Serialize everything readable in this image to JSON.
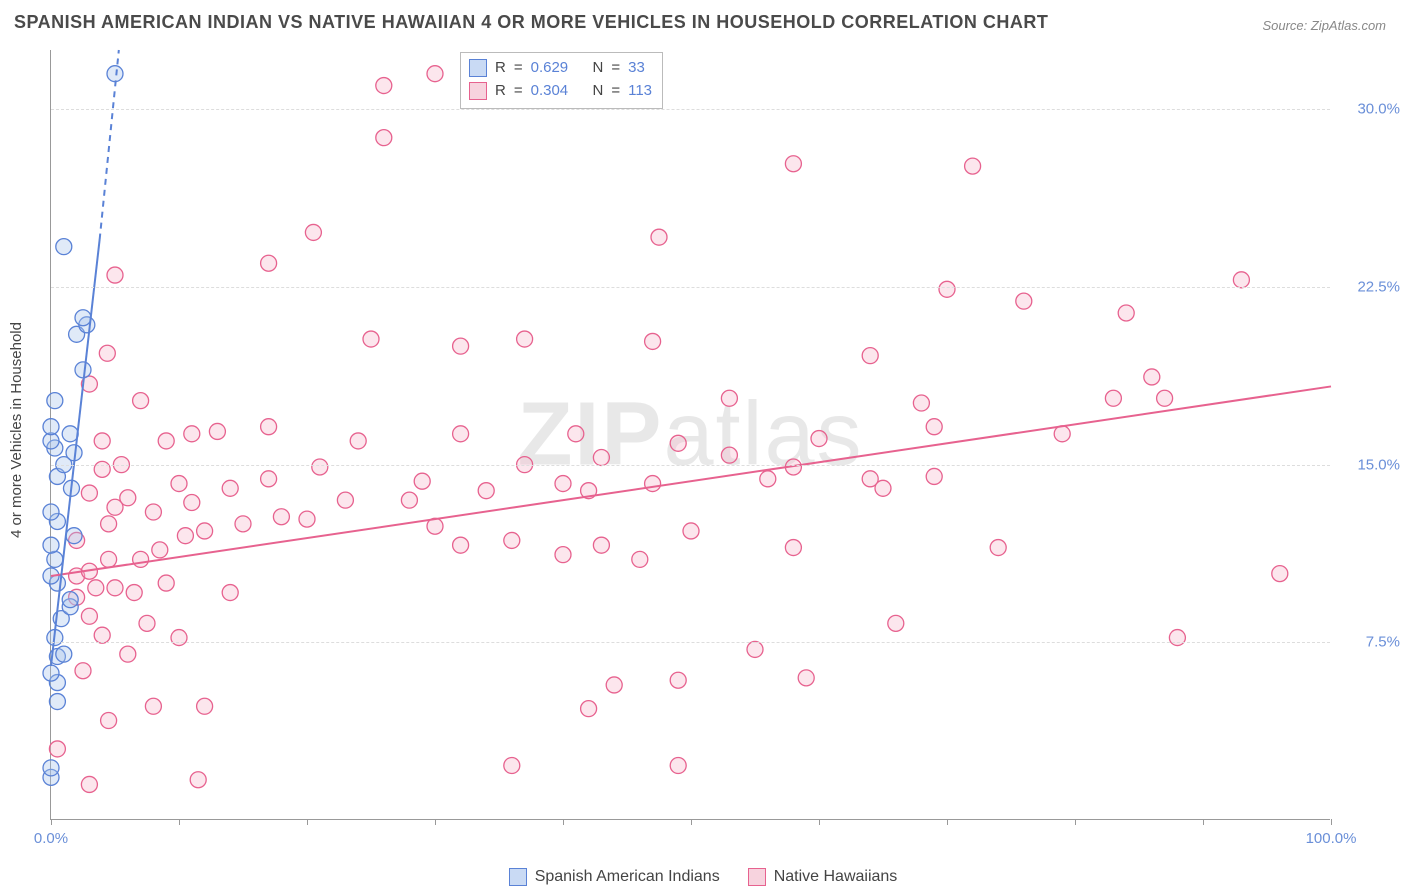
{
  "title": "SPANISH AMERICAN INDIAN VS NATIVE HAWAIIAN 4 OR MORE VEHICLES IN HOUSEHOLD CORRELATION CHART",
  "source": "Source: ZipAtlas.com",
  "ylabel": "4 or more Vehicles in Household",
  "watermark_bold": "ZIP",
  "watermark_thin": "atlas",
  "chart": {
    "type": "scatter",
    "background_color": "#ffffff",
    "grid_color": "#dddddd",
    "axis_color": "#999999",
    "label_color": "#6a8fd8",
    "title_color": "#4a4a4a",
    "title_fontsize": 18,
    "label_fontsize": 15,
    "xlim": [
      0,
      100
    ],
    "ylim": [
      0,
      32.5
    ],
    "xticks": [
      0,
      10,
      20,
      30,
      40,
      50,
      60,
      70,
      80,
      90,
      100
    ],
    "xtick_labels": {
      "0": "0.0%",
      "100": "100.0%"
    },
    "yticks": [
      7.5,
      15.0,
      22.5,
      30.0
    ],
    "ytick_labels": [
      "7.5%",
      "15.0%",
      "22.5%",
      "30.0%"
    ],
    "marker_radius": 8,
    "marker_opacity": 0.35,
    "line_width": 2
  },
  "series": {
    "blue": {
      "label": "Spanish American Indians",
      "color_fill": "#a7c4ec",
      "color_stroke": "#5a82d6",
      "swatch_fill": "#c9daf4",
      "swatch_stroke": "#5a82d6",
      "R": "0.629",
      "N": "33",
      "trend": {
        "x1": 0,
        "y1": 6.5,
        "x2": 5.3,
        "y2": 32.5,
        "dash_extend": true
      },
      "points": [
        [
          0.0,
          1.8
        ],
        [
          0.0,
          2.2
        ],
        [
          0.5,
          5.0
        ],
        [
          0.5,
          5.8
        ],
        [
          0.0,
          6.2
        ],
        [
          0.5,
          6.9
        ],
        [
          1.0,
          7.0
        ],
        [
          0.3,
          7.7
        ],
        [
          0.8,
          8.5
        ],
        [
          1.5,
          9.0
        ],
        [
          1.5,
          9.3
        ],
        [
          0.5,
          10.0
        ],
        [
          0.0,
          10.3
        ],
        [
          0.3,
          11.0
        ],
        [
          0.0,
          11.6
        ],
        [
          1.8,
          12.0
        ],
        [
          0.5,
          12.6
        ],
        [
          0.0,
          13.0
        ],
        [
          1.6,
          14.0
        ],
        [
          0.5,
          14.5
        ],
        [
          1.0,
          15.0
        ],
        [
          1.8,
          15.5
        ],
        [
          0.3,
          15.7
        ],
        [
          0.0,
          16.0
        ],
        [
          1.5,
          16.3
        ],
        [
          0.0,
          16.6
        ],
        [
          0.3,
          17.7
        ],
        [
          2.5,
          19.0
        ],
        [
          2.0,
          20.5
        ],
        [
          2.8,
          20.9
        ],
        [
          2.5,
          21.2
        ],
        [
          1.0,
          24.2
        ],
        [
          5.0,
          31.5
        ]
      ]
    },
    "pink": {
      "label": "Native Hawaiians",
      "color_fill": "#f5b8cb",
      "color_stroke": "#e7628f",
      "swatch_fill": "#f7d3de",
      "swatch_stroke": "#e7628f",
      "R": "0.304",
      "N": "113",
      "trend": {
        "x1": 0,
        "y1": 10.3,
        "x2": 100,
        "y2": 18.3,
        "dash_extend": false
      },
      "points": [
        [
          0.5,
          3.0
        ],
        [
          3.0,
          1.5
        ],
        [
          11.5,
          1.7
        ],
        [
          36.0,
          2.3
        ],
        [
          49.0,
          2.3
        ],
        [
          4.5,
          4.2
        ],
        [
          42.0,
          4.7
        ],
        [
          8.0,
          4.8
        ],
        [
          12.0,
          4.8
        ],
        [
          44.0,
          5.7
        ],
        [
          49.0,
          5.9
        ],
        [
          59.0,
          6.0
        ],
        [
          2.5,
          6.3
        ],
        [
          6.0,
          7.0
        ],
        [
          55.0,
          7.2
        ],
        [
          4.0,
          7.8
        ],
        [
          10.0,
          7.7
        ],
        [
          88.0,
          7.7
        ],
        [
          7.5,
          8.3
        ],
        [
          3.0,
          8.6
        ],
        [
          66.0,
          8.3
        ],
        [
          2.0,
          9.4
        ],
        [
          3.5,
          9.8
        ],
        [
          5.0,
          9.8
        ],
        [
          6.5,
          9.6
        ],
        [
          9.0,
          10.0
        ],
        [
          14.0,
          9.6
        ],
        [
          2.0,
          10.3
        ],
        [
          3.0,
          10.5
        ],
        [
          96.0,
          10.4
        ],
        [
          4.5,
          11.0
        ],
        [
          7.0,
          11.0
        ],
        [
          8.5,
          11.4
        ],
        [
          32.0,
          11.6
        ],
        [
          40.0,
          11.2
        ],
        [
          46.0,
          11.0
        ],
        [
          43.0,
          11.6
        ],
        [
          36.0,
          11.8
        ],
        [
          58.0,
          11.5
        ],
        [
          2.0,
          11.8
        ],
        [
          10.5,
          12.0
        ],
        [
          12.0,
          12.2
        ],
        [
          4.5,
          12.5
        ],
        [
          15.0,
          12.5
        ],
        [
          20.0,
          12.7
        ],
        [
          30.0,
          12.4
        ],
        [
          50.0,
          12.2
        ],
        [
          18.0,
          12.8
        ],
        [
          5.0,
          13.2
        ],
        [
          8.0,
          13.0
        ],
        [
          11.0,
          13.4
        ],
        [
          23.0,
          13.5
        ],
        [
          28.0,
          13.5
        ],
        [
          34.0,
          13.9
        ],
        [
          42.0,
          13.9
        ],
        [
          6.0,
          13.6
        ],
        [
          3.0,
          13.8
        ],
        [
          10.0,
          14.2
        ],
        [
          14.0,
          14.0
        ],
        [
          17.0,
          14.4
        ],
        [
          29.0,
          14.3
        ],
        [
          40.0,
          14.2
        ],
        [
          47.0,
          14.2
        ],
        [
          56.0,
          14.4
        ],
        [
          64.0,
          14.4
        ],
        [
          69.0,
          14.5
        ],
        [
          4.0,
          14.8
        ],
        [
          21.0,
          14.9
        ],
        [
          5.5,
          15.0
        ],
        [
          37.0,
          15.0
        ],
        [
          43.0,
          15.3
        ],
        [
          53.0,
          15.4
        ],
        [
          58.0,
          14.9
        ],
        [
          4.0,
          16.0
        ],
        [
          9.0,
          16.0
        ],
        [
          13.0,
          16.4
        ],
        [
          17.0,
          16.6
        ],
        [
          24.0,
          16.0
        ],
        [
          32.0,
          16.3
        ],
        [
          41.0,
          16.3
        ],
        [
          49.0,
          15.9
        ],
        [
          60.0,
          16.1
        ],
        [
          69.0,
          16.6
        ],
        [
          79.0,
          16.3
        ],
        [
          11.0,
          16.3
        ],
        [
          7.0,
          17.7
        ],
        [
          53.0,
          17.8
        ],
        [
          68.0,
          17.6
        ],
        [
          83.0,
          17.8
        ],
        [
          87.0,
          17.8
        ],
        [
          86.0,
          18.7
        ],
        [
          3.0,
          18.4
        ],
        [
          4.4,
          19.7
        ],
        [
          64.0,
          19.6
        ],
        [
          32.0,
          20.0
        ],
        [
          25.0,
          20.3
        ],
        [
          37.0,
          20.3
        ],
        [
          47.0,
          20.2
        ],
        [
          70.0,
          22.4
        ],
        [
          84.0,
          21.4
        ],
        [
          76.0,
          21.9
        ],
        [
          93.0,
          22.8
        ],
        [
          20.5,
          24.8
        ],
        [
          47.5,
          24.6
        ],
        [
          30.0,
          31.5
        ],
        [
          26.0,
          31.0
        ],
        [
          58.0,
          27.7
        ],
        [
          72.0,
          27.6
        ],
        [
          26.0,
          28.8
        ],
        [
          5.0,
          23.0
        ],
        [
          17.0,
          23.5
        ],
        [
          65.0,
          14.0
        ],
        [
          74.0,
          11.5
        ]
      ]
    }
  },
  "stats_labels": {
    "R": "R",
    "N": "N",
    "eq": "="
  },
  "legend": {
    "blue": "Spanish American Indians",
    "pink": "Native Hawaiians"
  }
}
